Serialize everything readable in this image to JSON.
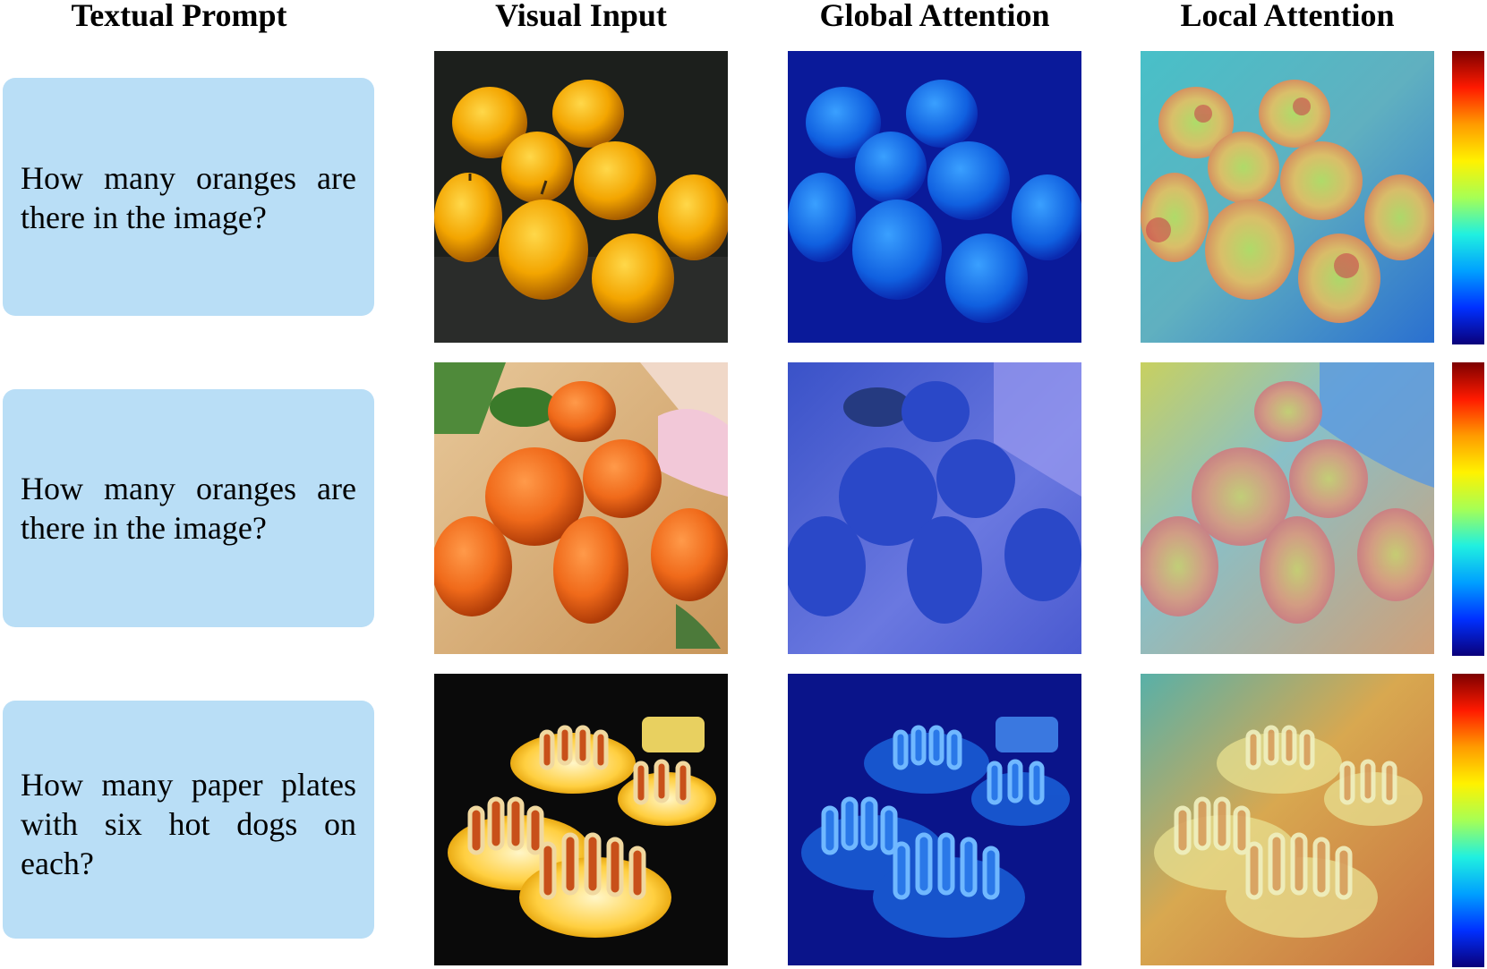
{
  "headers": {
    "textual_prompt": "Textual Prompt",
    "visual_input": "Visual Input",
    "global_attention": "Global Attention",
    "local_attention": "Local Attention"
  },
  "rows": [
    {
      "prompt": "How many oranges are there in the image?"
    },
    {
      "prompt": "How many oranges are there in the image?"
    },
    {
      "prompt": "How many paper plates with six hot dogs on each?"
    }
  ],
  "colorbar": {
    "colors": [
      "#7d0000",
      "#ff1a00",
      "#ff9b00",
      "#fff200",
      "#a6ff55",
      "#20f0e0",
      "#00a0ff",
      "#0030ff",
      "#0a007a"
    ]
  }
}
